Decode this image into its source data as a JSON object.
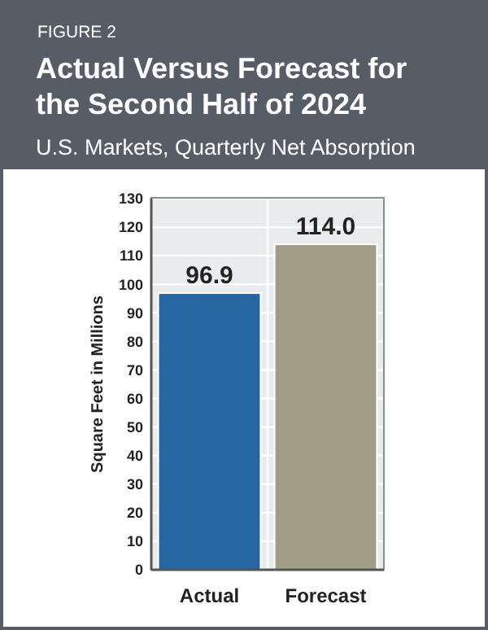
{
  "chart_data": {
    "type": "bar",
    "title": "Actual Versus Forecast for the Second Half of 2024",
    "subtitle": "U.S. Markets, Quarterly Net Absorption",
    "annotations": [
      "FIGURE 2"
    ],
    "ylabel": "Square Feet in Millions",
    "categories": [
      "Actual",
      "Forecast"
    ],
    "values": [
      96.9,
      114.0
    ],
    "colors": [
      "#2566a3",
      "#a29d86"
    ],
    "value_labels": [
      "96.9",
      "114.0"
    ],
    "ylim": [
      0,
      130
    ],
    "yticks": [
      0,
      10,
      20,
      30,
      40,
      50,
      60,
      70,
      80,
      90,
      100,
      110,
      120,
      130
    ],
    "grid": "y"
  }
}
